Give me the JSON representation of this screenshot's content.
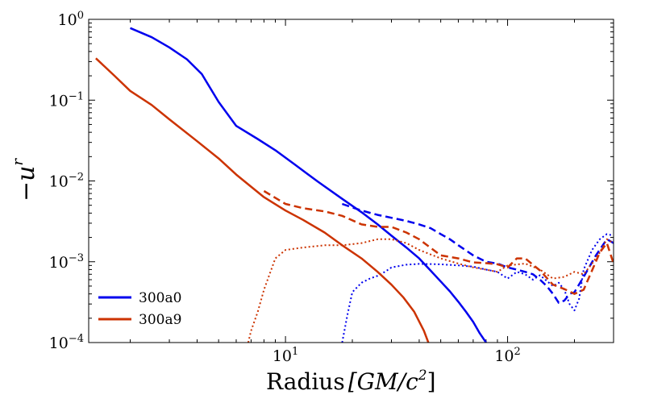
{
  "chart_data": {
    "type": "line",
    "xscale": "log",
    "yscale": "log",
    "xlim": [
      1.3,
      300
    ],
    "ylim": [
      0.0001,
      1
    ],
    "xlabel": "Radius",
    "xlabel_unit": "[GM/c",
    "xlabel_unit_exp": "2",
    "xlabel_unit_close": "]",
    "ylabel_prefix": "−u",
    "ylabel_sup": "r",
    "x_ticks": [
      {
        "value": 10,
        "base": "10",
        "exp": "1"
      },
      {
        "value": 100,
        "base": "10",
        "exp": "2"
      }
    ],
    "y_ticks": [
      {
        "value": 1,
        "base": "10",
        "exp": "0"
      },
      {
        "value": 0.1,
        "base": "10",
        "exp": "−1"
      },
      {
        "value": 0.01,
        "base": "10",
        "exp": "−2"
      },
      {
        "value": 0.001,
        "base": "10",
        "exp": "−3"
      },
      {
        "value": 0.0001,
        "base": "10",
        "exp": "−4"
      }
    ],
    "legend_position": "lower-left",
    "colors": {
      "blue": "#0000ee",
      "red": "#cc3300"
    },
    "series": [
      {
        "name": "300a0",
        "color": "#0000ee",
        "style": "solid",
        "in_legend": true,
        "x": [
          2.0,
          2.5,
          3.0,
          3.6,
          4.2,
          5.0,
          6.0,
          7.5,
          9.0,
          11,
          14,
          18,
          22,
          26,
          30,
          35,
          40,
          45,
          50,
          55,
          60,
          65,
          70,
          75,
          80
        ],
        "y": [
          0.78,
          0.6,
          0.45,
          0.32,
          0.21,
          0.095,
          0.048,
          0.033,
          0.024,
          0.016,
          0.0098,
          0.006,
          0.0041,
          0.0029,
          0.0021,
          0.0015,
          0.0011,
          0.00078,
          0.00057,
          0.00043,
          0.00032,
          0.00024,
          0.00018,
          0.00013,
          0.0001
        ]
      },
      {
        "name": "300a0",
        "color": "#0000ee",
        "style": "dashed",
        "in_legend": false,
        "x": [
          18,
          22,
          26,
          30,
          35,
          40,
          45,
          50,
          55,
          60,
          70,
          80,
          90,
          100,
          110,
          120,
          130,
          140,
          150,
          160,
          170,
          180,
          190,
          200,
          220,
          250,
          280,
          300
        ],
        "y": [
          0.0052,
          0.0043,
          0.0038,
          0.0035,
          0.0032,
          0.0029,
          0.0026,
          0.0022,
          0.0019,
          0.0016,
          0.0012,
          0.001,
          0.00095,
          0.00085,
          0.0008,
          0.00075,
          0.0007,
          0.0006,
          0.0005,
          0.0004,
          0.00031,
          0.00033,
          0.0004,
          0.00042,
          0.00065,
          0.0012,
          0.0019,
          0.0017
        ]
      },
      {
        "name": "300a0",
        "color": "#0000ee",
        "style": "dotted",
        "in_legend": false,
        "x": [
          18,
          19,
          20,
          22,
          24,
          26,
          28,
          30,
          35,
          40,
          50,
          60,
          70,
          80,
          90,
          100,
          110,
          120,
          130,
          140,
          150,
          160,
          170,
          180,
          190,
          200,
          210,
          220,
          240,
          260,
          280,
          300
        ],
        "y": [
          0.0001,
          0.00022,
          0.00042,
          0.00055,
          0.00062,
          0.00067,
          0.00075,
          0.00085,
          0.00092,
          0.00094,
          0.00093,
          0.0009,
          0.00087,
          0.0008,
          0.00075,
          0.00062,
          0.00075,
          0.0007,
          0.0006,
          0.00068,
          0.00058,
          0.0005,
          0.00055,
          0.00045,
          0.0003,
          0.00025,
          0.00035,
          0.0008,
          0.0014,
          0.0019,
          0.0022,
          0.0021
        ]
      },
      {
        "name": "300a9",
        "color": "#cc3300",
        "style": "solid",
        "in_legend": true,
        "x": [
          1.4,
          1.7,
          2.0,
          2.5,
          3.0,
          4.0,
          5.0,
          6.0,
          7.0,
          8.0,
          10,
          12,
          15,
          18,
          22,
          26,
          30,
          34,
          38,
          42,
          44
        ],
        "y": [
          0.33,
          0.2,
          0.13,
          0.087,
          0.058,
          0.031,
          0.019,
          0.012,
          0.0085,
          0.0063,
          0.0043,
          0.0033,
          0.0023,
          0.0016,
          0.0011,
          0.00075,
          0.00052,
          0.00036,
          0.00024,
          0.00014,
          0.0001
        ]
      },
      {
        "name": "300a9",
        "color": "#cc3300",
        "style": "dashed",
        "in_legend": false,
        "x": [
          8,
          10,
          12,
          15,
          18,
          22,
          26,
          30,
          35,
          40,
          50,
          60,
          70,
          80,
          90,
          100,
          110,
          120,
          140,
          160,
          180,
          200,
          220,
          240,
          260,
          280,
          300
        ],
        "y": [
          0.0075,
          0.0052,
          0.0046,
          0.0042,
          0.0037,
          0.0029,
          0.0027,
          0.0027,
          0.0023,
          0.0019,
          0.0012,
          0.0011,
          0.00098,
          0.00096,
          0.00093,
          0.00085,
          0.0011,
          0.0011,
          0.00078,
          0.00052,
          0.00046,
          0.0004,
          0.00045,
          0.00078,
          0.0013,
          0.0017,
          0.00095
        ]
      },
      {
        "name": "300a9",
        "color": "#cc3300",
        "style": "dotted",
        "in_legend": false,
        "x": [
          6.8,
          7.0,
          7.5,
          8.0,
          9.0,
          10,
          12,
          15,
          18,
          22,
          26,
          30,
          35,
          40,
          50,
          60,
          70,
          80,
          90,
          100,
          120,
          140,
          160,
          180,
          200,
          220,
          240,
          260,
          280,
          300
        ],
        "y": [
          0.0001,
          0.00014,
          0.00024,
          0.00045,
          0.0011,
          0.0014,
          0.0015,
          0.0016,
          0.0016,
          0.0017,
          0.0019,
          0.0019,
          0.0017,
          0.0014,
          0.0011,
          0.00095,
          0.00085,
          0.0008,
          0.00075,
          0.0009,
          0.00095,
          0.0008,
          0.00062,
          0.00065,
          0.00075,
          0.0007,
          0.00095,
          0.0013,
          0.0019,
          0.0017
        ]
      }
    ],
    "legend": [
      {
        "label": "300a0",
        "color": "#0000ee"
      },
      {
        "label": "300a9",
        "color": "#cc3300"
      }
    ]
  }
}
